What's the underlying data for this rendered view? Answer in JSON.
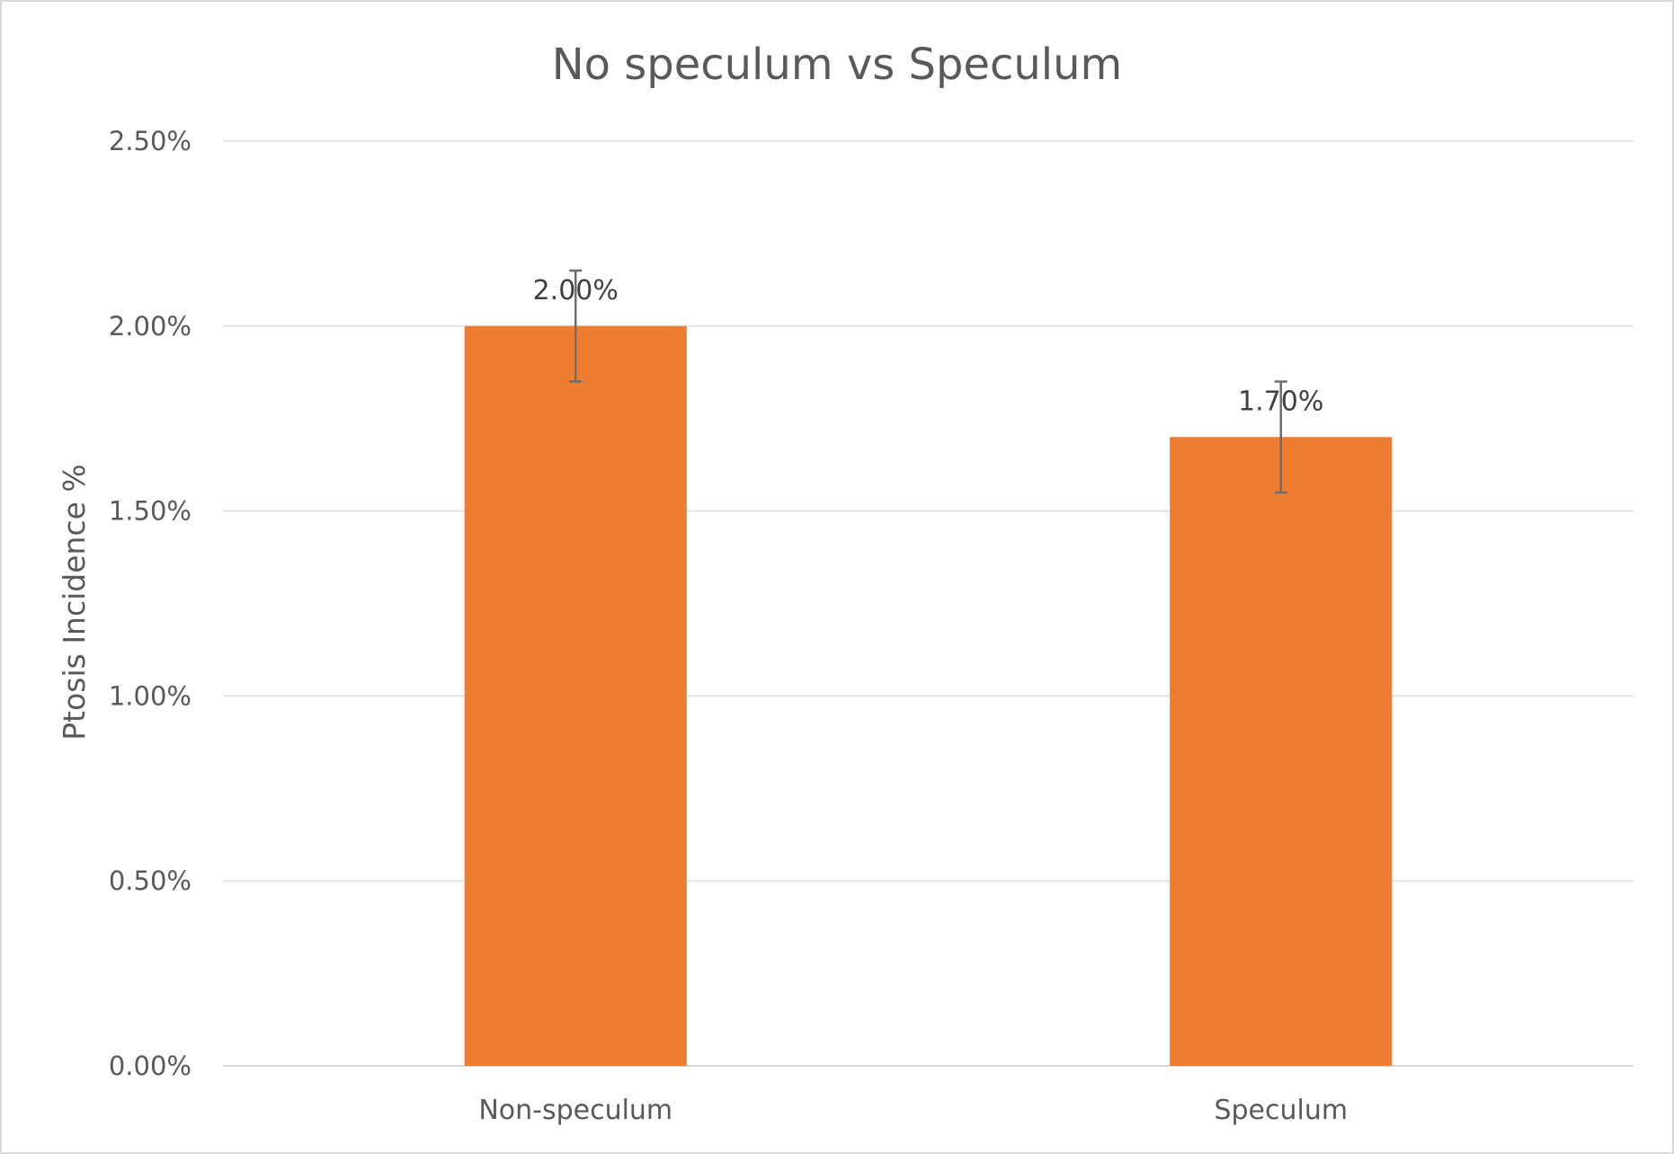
{
  "chart_data": {
    "type": "bar",
    "title": "No speculum vs Speculum",
    "xlabel": "",
    "ylabel": "Ptosis Incidence %",
    "categories": [
      "Non-speculum",
      "Speculum"
    ],
    "series": [
      {
        "values": [
          0.02,
          0.017
        ],
        "data_labels": [
          "2.00%",
          "1.70%"
        ],
        "error_bars": [
          [
            0.0185,
            0.0215
          ],
          [
            0.0155,
            0.0185
          ]
        ],
        "color": "#ED7D31"
      }
    ],
    "ylim": [
      0,
      0.025
    ],
    "yticks": [
      0,
      0.005,
      0.01,
      0.015,
      0.02,
      0.025
    ],
    "ytick_labels": [
      "0.00%",
      "0.50%",
      "1.00%",
      "1.50%",
      "2.00%",
      "2.50%"
    ],
    "grid": true,
    "legend": "none"
  }
}
